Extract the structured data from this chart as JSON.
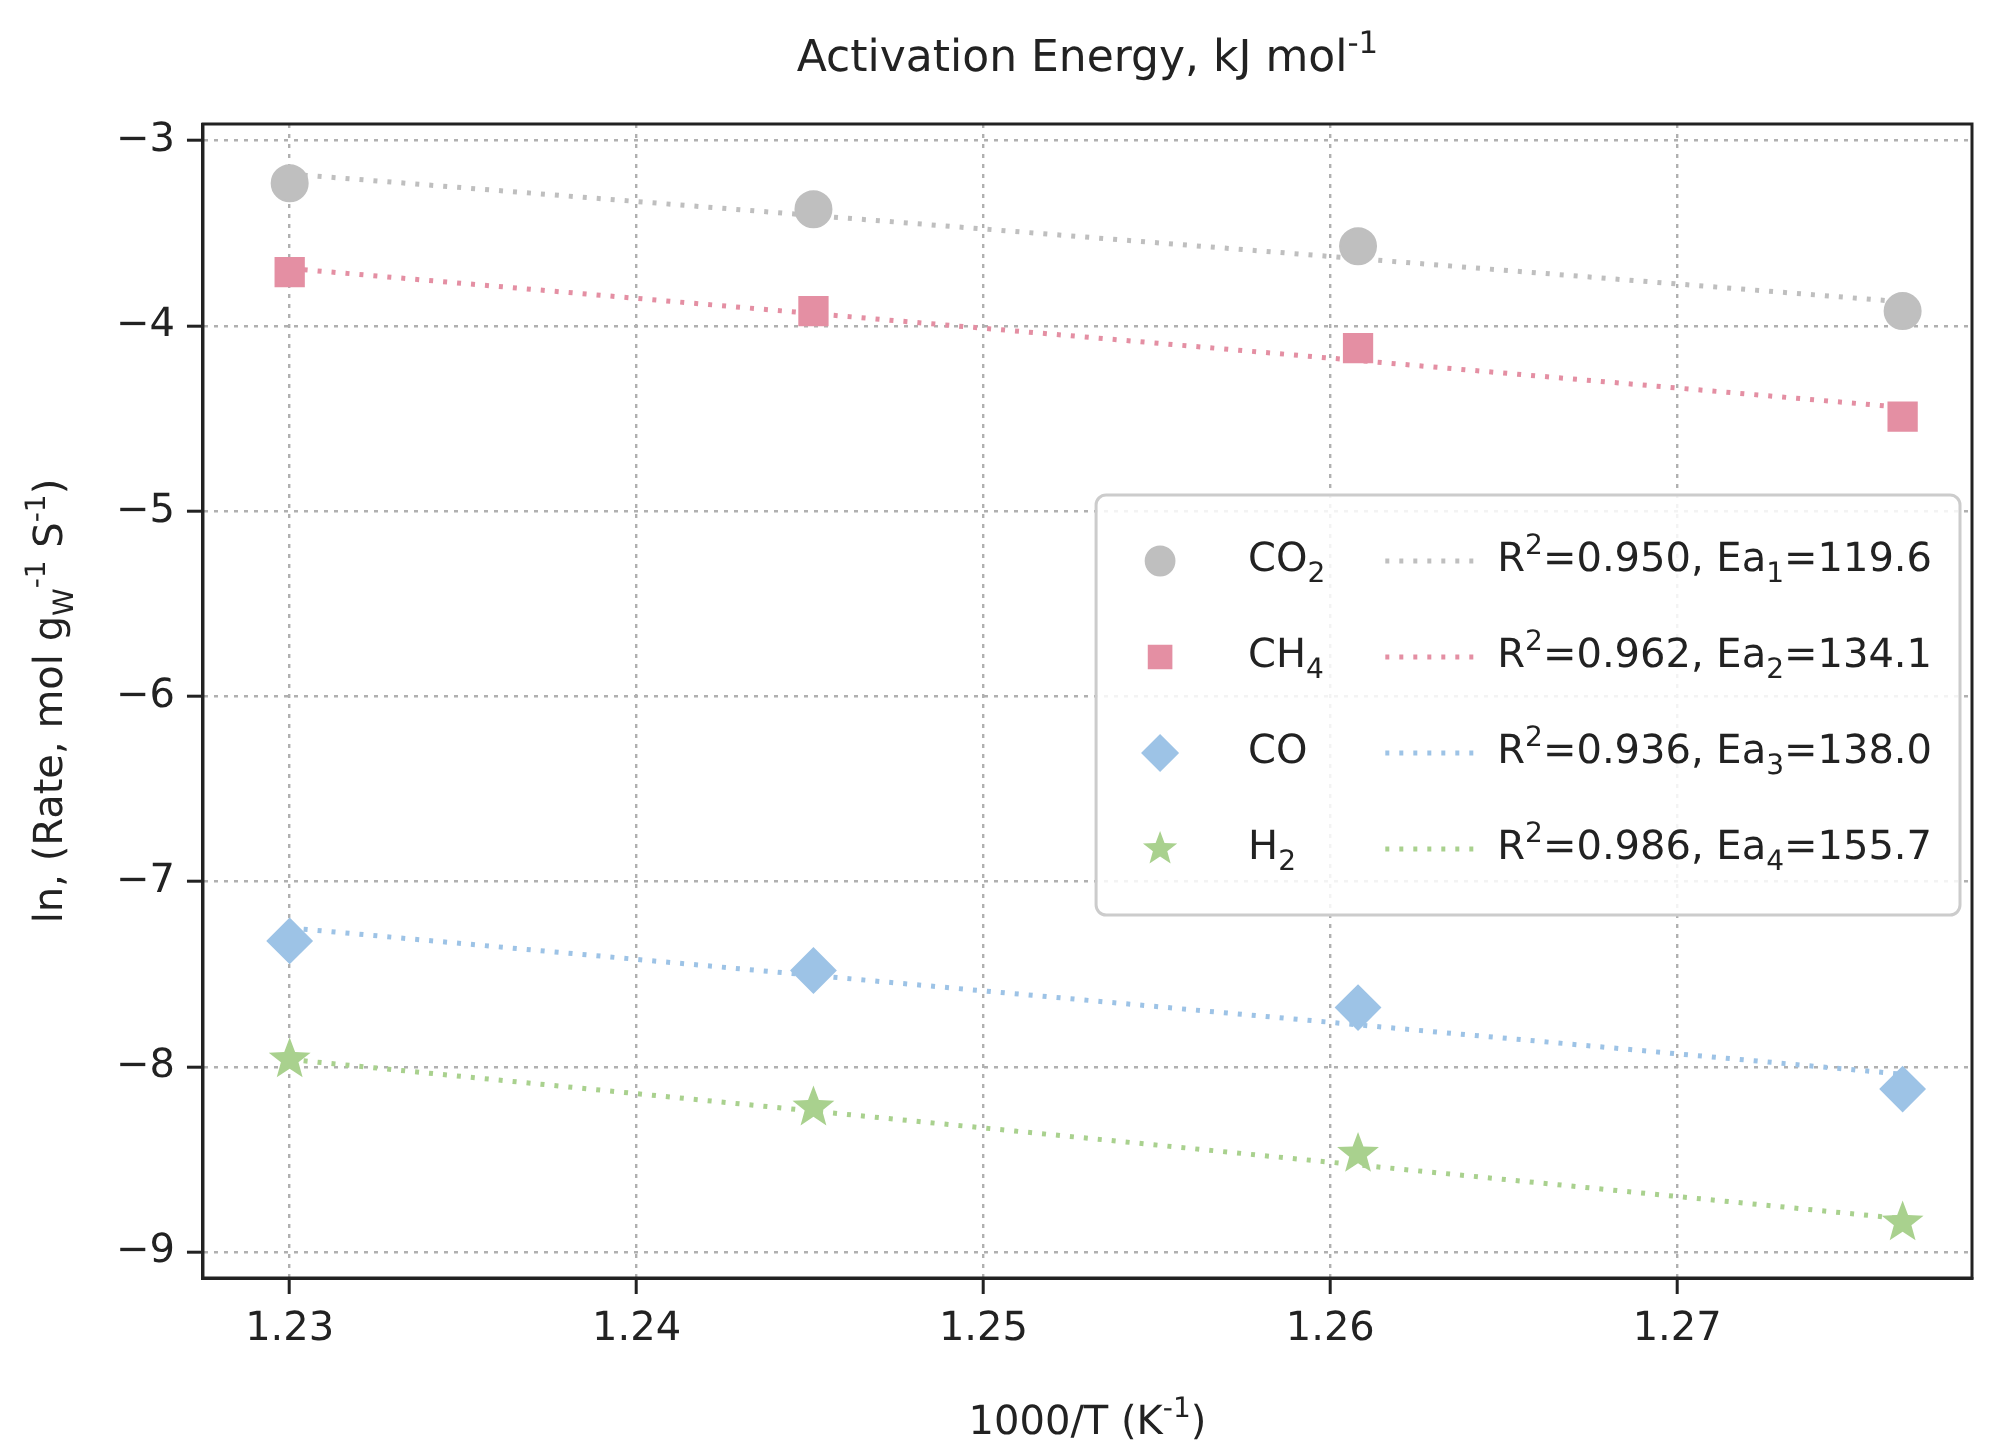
{
  "chart_data": {
    "type": "scatter",
    "title": "Activation Energy, kJ mol$^{-1}$",
    "xlabel": "1000/T (K$^{-1}$)",
    "ylabel": "ln, (Rate, mol g$_{W}$$^{-1}$ S$^{-1}$)",
    "xlim": [
      1.2275,
      1.2785
    ],
    "xticks": [
      1.23,
      1.24,
      1.25,
      1.26,
      1.27
    ],
    "ylim": [
      -9.14,
      -2.91
    ],
    "yticks": [
      -9,
      -8,
      -7,
      -6,
      -5,
      -4,
      -3
    ],
    "grid": true,
    "legend": "center right",
    "series": [
      {
        "name": "CO$_{2}$",
        "type": "scatter",
        "marker": "circle",
        "color": "#bfbfbf",
        "x": [
          1.23,
          1.2451,
          1.2608,
          1.2765
        ],
        "values": [
          -3.23,
          -3.37,
          -3.57,
          -3.92
        ]
      },
      {
        "name": "CH$_{4}$",
        "type": "scatter",
        "marker": "square",
        "color": "#e48fa3",
        "x": [
          1.23,
          1.2451,
          1.2608,
          1.2765
        ],
        "values": [
          -3.71,
          -3.92,
          -4.12,
          -4.49
        ]
      },
      {
        "name": "CO",
        "type": "scatter",
        "marker": "diamond",
        "color": "#9dc3e6",
        "x": [
          1.23,
          1.2451,
          1.2608,
          1.2765
        ],
        "values": [
          -7.32,
          -7.48,
          -7.68,
          -8.12
        ]
      },
      {
        "name": "H$_{2}$",
        "type": "scatter",
        "marker": "star",
        "color": "#a9d18e",
        "x": [
          1.23,
          1.2451,
          1.2608,
          1.2765
        ],
        "values": [
          -7.96,
          -8.22,
          -8.47,
          -8.84
        ]
      },
      {
        "name": "R$^{2}$=0.950, Ea$_{1}$=119.6",
        "type": "line",
        "line_style": "dotted",
        "marker": "none",
        "color": "#bfbfbf",
        "x": [
          1.23,
          1.2765
        ],
        "values": [
          -3.18,
          -3.87
        ]
      },
      {
        "name": "R$^{2}$=0.962, Ea$_{2}$=134.1",
        "type": "line",
        "line_style": "dotted",
        "marker": "none",
        "color": "#e48fa3",
        "x": [
          1.23,
          1.2765
        ],
        "values": [
          -3.69,
          -4.44
        ]
      },
      {
        "name": "R$^{2}$=0.936, Ea$_{3}$=138.0",
        "type": "line",
        "line_style": "dotted",
        "marker": "none",
        "color": "#9dc3e6",
        "x": [
          1.23,
          1.2765
        ],
        "values": [
          -7.25,
          -8.04
        ]
      },
      {
        "name": "R$^{2}$=0.986, Ea$_{4}$=155.7",
        "type": "line",
        "line_style": "dotted",
        "marker": "none",
        "color": "#a9d18e",
        "x": [
          1.23,
          1.2765
        ],
        "values": [
          -7.96,
          -8.82
        ]
      }
    ]
  }
}
